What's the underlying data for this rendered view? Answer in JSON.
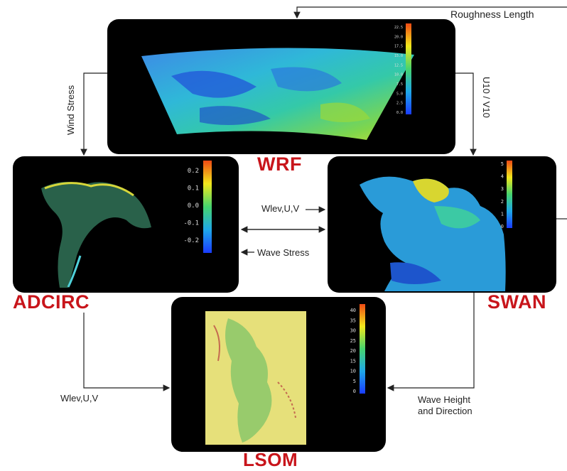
{
  "models": {
    "wrf": "WRF",
    "adcirc": "ADCIRC",
    "swan": "SWAN",
    "lsom": "LSOM"
  },
  "flows": {
    "roughness_length": "Roughness Length",
    "wind_stress": "Wind Stress",
    "u10_v10": "U10 / V10",
    "wlev_uv_mid": "Wlev,U,V",
    "wave_stress": "Wave Stress",
    "wlev_uv_bottom": "Wlev,U,V",
    "wave_height_line1": "Wave Height",
    "wave_height_line2": "and Direction"
  },
  "colorbars": {
    "wrf": [
      "22.5",
      "20.0",
      "17.5",
      "15.0",
      "12.5",
      "10.0",
      "7.5",
      "5.0",
      "2.5",
      "0.0"
    ],
    "adcirc": [
      "0.2",
      "0.1",
      "0.0",
      "-0.1",
      "-0.2"
    ],
    "swan": [
      "5",
      "4",
      "3",
      "2",
      "1",
      "0"
    ],
    "lsom": [
      "40",
      "35",
      "30",
      "25",
      "20",
      "15",
      "10",
      "5",
      "0"
    ]
  },
  "colors": {
    "label_red": "#c8151b",
    "panel_bg": "#000000",
    "arrow": "#222222"
  }
}
